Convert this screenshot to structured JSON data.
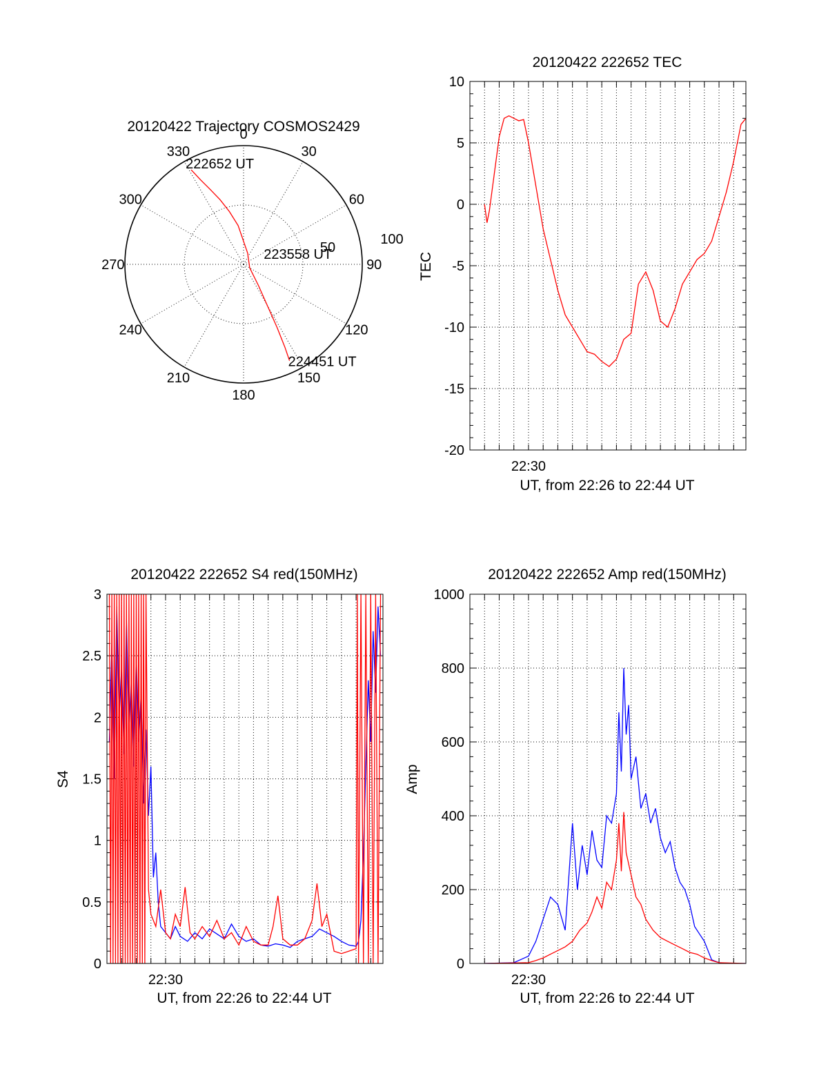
{
  "chart_data": [
    {
      "type": "polar",
      "title": "20120422 Trajectory COSMOS2429",
      "angle_labels": [
        "0",
        "30",
        "60",
        "90",
        "120",
        "150",
        "180",
        "210",
        "240",
        "270",
        "300",
        "330"
      ],
      "radial_labels": [
        "50",
        "100"
      ],
      "rlim": [
        0,
        100
      ],
      "grid": true,
      "series": [
        {
          "color": "#ff0000",
          "azimuth": [
            331,
            333,
            336,
            340,
            345,
            352,
            20,
            120,
            145,
            150,
            152,
            153.5,
            154.5
          ],
          "radius": [
            91,
            80,
            69,
            58,
            46,
            33,
            10,
            6,
            22,
            40,
            60,
            78,
            90
          ]
        }
      ],
      "annotations": [
        {
          "text": "222652 UT",
          "azimuth": 331,
          "radius": 91
        },
        {
          "text": "223558 UT",
          "azimuth": 55,
          "radius": 8
        },
        {
          "text": "224451 UT",
          "azimuth": 154.5,
          "radius": 90
        }
      ]
    },
    {
      "type": "line",
      "title": "20120422 222652 TEC",
      "xlabel": "UT, from 22:26 to 22:44 UT",
      "ylabel": "TEC",
      "xlim": [
        "22:26:00",
        "22:44:50"
      ],
      "x_tick_labels": [
        {
          "x": "22:30",
          "label": "22:30"
        }
      ],
      "ylim": [
        -20,
        10
      ],
      "y_ticks": [
        "-20",
        "-15",
        "-10",
        "-5",
        "0",
        "5",
        "10"
      ],
      "grid": true,
      "series": [
        {
          "color": "#ff0000",
          "x": [
            "22:27:00",
            "22:27:10",
            "22:27:20",
            "22:27:40",
            "22:28:00",
            "22:28:20",
            "22:28:40",
            "22:29:00",
            "22:29:20",
            "22:29:40",
            "22:30:00",
            "22:30:30",
            "22:31:00",
            "22:31:30",
            "22:32:00",
            "22:32:30",
            "22:33:00",
            "22:33:30",
            "22:34:00",
            "22:34:30",
            "22:35:00",
            "22:35:30",
            "22:36:00",
            "22:36:30",
            "22:37:00",
            "22:37:30",
            "22:38:00",
            "22:38:30",
            "22:39:00",
            "22:39:30",
            "22:40:00",
            "22:40:30",
            "22:41:00",
            "22:41:30",
            "22:42:00",
            "22:42:30",
            "22:43:00",
            "22:43:30",
            "22:44:00",
            "22:44:30",
            "22:44:50"
          ],
          "y": [
            0,
            -1.5,
            -0.5,
            2.5,
            5.5,
            7,
            7.2,
            7,
            6.8,
            6.9,
            5,
            1.5,
            -2,
            -4.5,
            -7,
            -9,
            -10,
            -11,
            -12,
            -12.2,
            -12.8,
            -13.2,
            -12.6,
            -11,
            -10.5,
            -6.5,
            -5.5,
            -7,
            -9.5,
            -10,
            -8.5,
            -6.5,
            -5.5,
            -4.5,
            -4,
            -3,
            -1,
            1,
            3.5,
            6.5,
            7
          ]
        }
      ]
    },
    {
      "type": "line",
      "title": "20120422 222652 S4 red(150MHz)",
      "xlabel": "UT, from 22:26 to 22:44 UT",
      "ylabel": "S4",
      "xlim": [
        "22:26:00",
        "22:44:50"
      ],
      "x_tick_labels": [
        {
          "x": "22:30",
          "label": "22:30"
        }
      ],
      "ylim": [
        0,
        3
      ],
      "y_ticks": [
        "0",
        "0.5",
        "1",
        "1.5",
        "2",
        "2.5",
        "3"
      ],
      "grid": true,
      "series": [
        {
          "color": "#0000ff",
          "x": [
            "22:26:10",
            "22:26:20",
            "22:26:30",
            "22:26:40",
            "22:26:50",
            "22:27:00",
            "22:27:10",
            "22:27:20",
            "22:27:30",
            "22:27:40",
            "22:27:50",
            "22:28:00",
            "22:28:10",
            "22:28:20",
            "22:28:30",
            "22:28:40",
            "22:28:50",
            "22:29:00",
            "22:29:10",
            "22:29:20",
            "22:29:30",
            "22:29:40",
            "22:30:00",
            "22:30:20",
            "22:30:40",
            "22:31:00",
            "22:31:30",
            "22:32:00",
            "22:32:30",
            "22:33:00",
            "22:33:30",
            "22:34:00",
            "22:34:30",
            "22:35:00",
            "22:35:30",
            "22:36:00",
            "22:36:30",
            "22:37:00",
            "22:37:30",
            "22:38:00",
            "22:38:30",
            "22:39:00",
            "22:39:30",
            "22:40:00",
            "22:40:30",
            "22:41:00",
            "22:41:30",
            "22:42:00",
            "22:42:30",
            "22:43:00",
            "22:43:10",
            "22:43:20",
            "22:43:30",
            "22:43:40",
            "22:43:50",
            "22:44:00",
            "22:44:10",
            "22:44:20",
            "22:44:30",
            "22:44:40"
          ],
          "y": [
            1.8,
            2.6,
            1.5,
            2.9,
            2.0,
            2.4,
            1.7,
            2.8,
            1.9,
            2.3,
            1.6,
            2.5,
            1.8,
            2.2,
            1.3,
            1.9,
            1.2,
            1.6,
            0.7,
            0.9,
            0.5,
            0.3,
            0.25,
            0.2,
            0.3,
            0.22,
            0.18,
            0.25,
            0.2,
            0.28,
            0.24,
            0.2,
            0.32,
            0.22,
            0.18,
            0.2,
            0.15,
            0.14,
            0.16,
            0.15,
            0.13,
            0.18,
            0.2,
            0.22,
            0.28,
            0.25,
            0.22,
            0.18,
            0.15,
            0.14,
            0.18,
            0.35,
            0.9,
            1.6,
            2.3,
            1.8,
            2.7,
            2.2,
            2.9,
            2.5
          ]
        },
        {
          "color": "#ff0000",
          "x": [
            "22:26:10",
            "22:26:15",
            "22:26:20",
            "22:26:25",
            "22:26:30",
            "22:26:35",
            "22:26:40",
            "22:26:45",
            "22:26:50",
            "22:26:55",
            "22:27:00",
            "22:27:05",
            "22:27:10",
            "22:27:15",
            "22:27:20",
            "22:27:25",
            "22:27:30",
            "22:27:35",
            "22:27:40",
            "22:27:45",
            "22:27:50",
            "22:27:55",
            "22:28:00",
            "22:28:05",
            "22:28:10",
            "22:28:15",
            "22:28:20",
            "22:28:25",
            "22:28:30",
            "22:28:35",
            "22:28:40",
            "22:28:50",
            "22:29:00",
            "22:29:20",
            "22:29:40",
            "22:30:00",
            "22:30:20",
            "22:30:40",
            "22:31:00",
            "22:31:20",
            "22:31:40",
            "22:32:00",
            "22:32:30",
            "22:33:00",
            "22:33:30",
            "22:34:00",
            "22:34:30",
            "22:35:00",
            "22:35:30",
            "22:36:00",
            "22:36:30",
            "22:37:00",
            "22:37:20",
            "22:37:40",
            "22:38:00",
            "22:38:30",
            "22:39:00",
            "22:39:30",
            "22:40:00",
            "22:40:20",
            "22:40:40",
            "22:41:00",
            "22:41:30",
            "22:42:00",
            "22:42:30",
            "22:43:00",
            "22:43:05",
            "22:43:10",
            "22:43:20",
            "22:43:30",
            "22:43:40",
            "22:43:50",
            "22:44:00",
            "22:44:10",
            "22:44:20",
            "22:44:30",
            "22:44:40"
          ],
          "y": [
            3,
            0,
            3,
            0,
            3,
            0,
            3,
            0,
            3,
            0,
            3,
            0,
            3,
            0,
            3,
            0,
            3,
            0,
            3,
            0,
            3,
            0,
            3,
            0,
            3,
            0,
            3,
            0,
            3,
            0,
            3,
            0.6,
            0.4,
            0.3,
            0.6,
            0.25,
            0.2,
            0.4,
            0.3,
            0.62,
            0.25,
            0.2,
            0.3,
            0.22,
            0.35,
            0.2,
            0.25,
            0.15,
            0.3,
            0.18,
            0.15,
            0.15,
            0.3,
            0.55,
            0.2,
            0.15,
            0.15,
            0.2,
            0.35,
            0.65,
            0.3,
            0.4,
            0.1,
            0.08,
            0.1,
            0.12,
            3,
            0,
            3,
            0,
            3,
            0,
            3,
            0,
            3,
            0,
            3
          ]
        }
      ]
    },
    {
      "type": "line",
      "title": "20120422 222652 Amp red(150MHz)",
      "xlabel": "UT, from 22:26 to 22:44 UT",
      "ylabel": "Amp",
      "xlim": [
        "22:26:00",
        "22:44:50"
      ],
      "x_tick_labels": [
        {
          "x": "22:30",
          "label": "22:30"
        }
      ],
      "ylim": [
        0,
        1000
      ],
      "y_ticks": [
        "0",
        "200",
        "400",
        "600",
        "800",
        "1000"
      ],
      "grid": true,
      "series": [
        {
          "color": "#0000ff",
          "x": [
            "22:27:00",
            "22:29:00",
            "22:30:00",
            "22:30:30",
            "22:31:00",
            "22:31:30",
            "22:32:00",
            "22:32:30",
            "22:33:00",
            "22:33:20",
            "22:33:40",
            "22:34:00",
            "22:34:20",
            "22:34:40",
            "22:35:00",
            "22:35:20",
            "22:35:40",
            "22:36:00",
            "22:36:10",
            "22:36:20",
            "22:36:30",
            "22:36:40",
            "22:36:50",
            "22:37:00",
            "22:37:20",
            "22:37:40",
            "22:38:00",
            "22:38:20",
            "22:38:40",
            "22:39:00",
            "22:39:20",
            "22:39:40",
            "22:40:00",
            "22:40:20",
            "22:40:40",
            "22:41:00",
            "22:41:20",
            "22:41:40",
            "22:42:00",
            "22:42:30",
            "22:43:00",
            "22:44:00",
            "22:44:50"
          ],
          "y": [
            0,
            2,
            20,
            60,
            120,
            180,
            160,
            90,
            380,
            200,
            320,
            240,
            360,
            280,
            260,
            400,
            380,
            460,
            680,
            520,
            800,
            620,
            700,
            500,
            560,
            420,
            460,
            380,
            420,
            340,
            300,
            330,
            260,
            220,
            200,
            160,
            100,
            80,
            60,
            10,
            2,
            0,
            0
          ]
        },
        {
          "color": "#ff0000",
          "x": [
            "22:27:00",
            "22:30:00",
            "22:30:30",
            "22:31:00",
            "22:31:30",
            "22:32:00",
            "22:32:30",
            "22:33:00",
            "22:33:30",
            "22:34:00",
            "22:34:20",
            "22:34:40",
            "22:35:00",
            "22:35:20",
            "22:35:40",
            "22:36:00",
            "22:36:10",
            "22:36:20",
            "22:36:30",
            "22:36:40",
            "22:37:00",
            "22:37:20",
            "22:37:40",
            "22:38:00",
            "22:38:30",
            "22:39:00",
            "22:39:30",
            "22:40:00",
            "22:40:30",
            "22:41:00",
            "22:41:30",
            "22:42:00",
            "22:42:30",
            "22:43:00",
            "22:44:50"
          ],
          "y": [
            0,
            2,
            8,
            15,
            25,
            35,
            45,
            60,
            90,
            110,
            140,
            180,
            150,
            220,
            200,
            280,
            380,
            250,
            410,
            300,
            240,
            180,
            160,
            120,
            90,
            70,
            60,
            50,
            40,
            30,
            25,
            15,
            8,
            2,
            0
          ]
        }
      ]
    }
  ]
}
